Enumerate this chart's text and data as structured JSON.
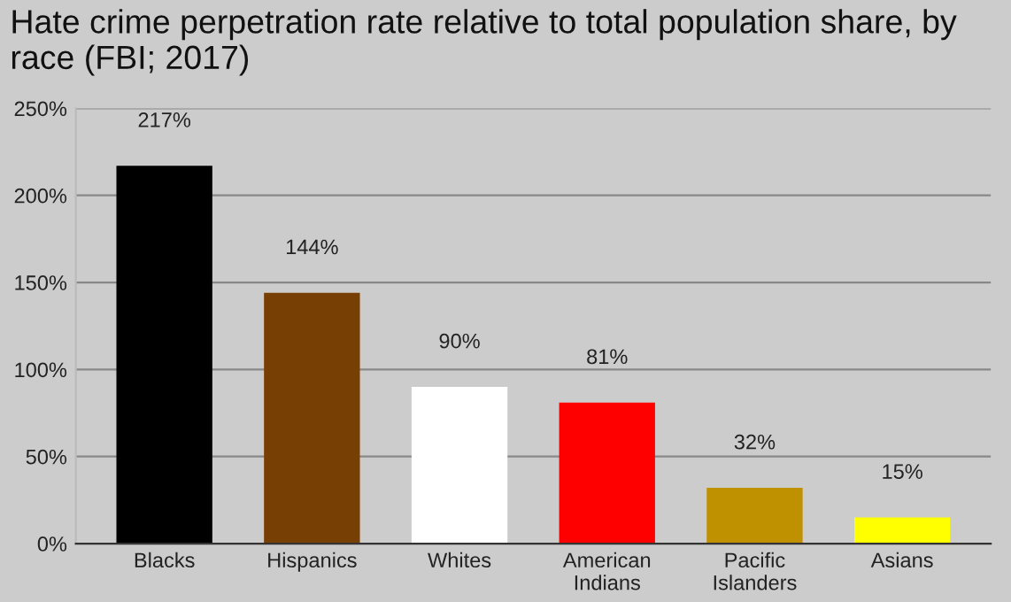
{
  "chart_data": {
    "type": "bar",
    "title": "Hate crime perpetration rate relative to total population share, by race (FBI; 2017)",
    "categories": [
      "Blacks",
      "Hispanics",
      "Whites",
      "American Indians",
      "Pacific Islanders",
      "Asians"
    ],
    "values": [
      217,
      144,
      90,
      81,
      32,
      15
    ],
    "colors": [
      "#000000",
      "#783f04",
      "#ffffff",
      "#ff0000",
      "#bf9000",
      "#ffff00"
    ],
    "value_labels": [
      "217%",
      "144%",
      "90%",
      "81%",
      "32%",
      "15%"
    ],
    "ylim": [
      0,
      250
    ],
    "yticks": [
      {
        "value": 0,
        "label": "0%"
      },
      {
        "value": 50,
        "label": "50%"
      },
      {
        "value": 100,
        "label": "100%"
      },
      {
        "value": 150,
        "label": "150%"
      },
      {
        "value": 200,
        "label": "200%"
      },
      {
        "value": 250,
        "label": "250%"
      }
    ],
    "grid": "y",
    "legend": false
  }
}
